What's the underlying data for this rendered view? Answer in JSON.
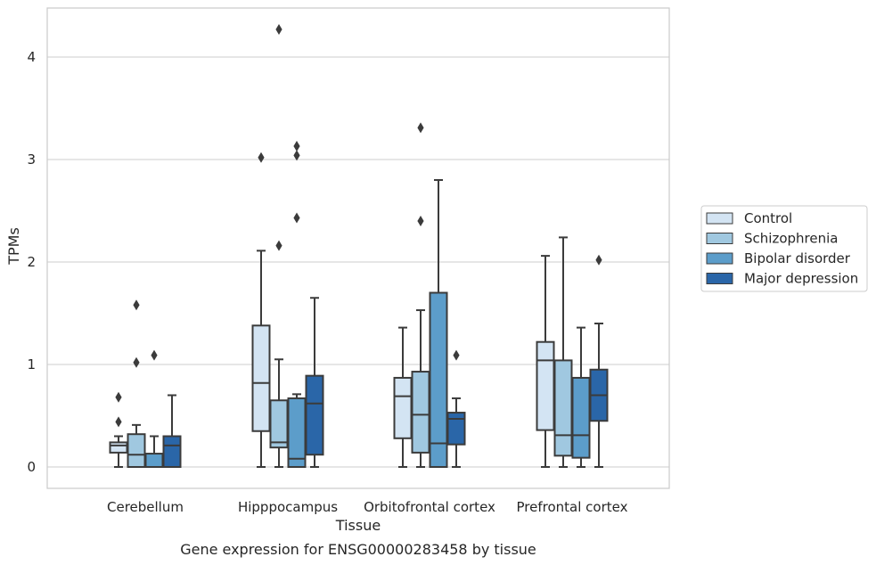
{
  "chart_data": {
    "type": "box",
    "caption": "Gene expression for ENSG00000283458 by tissue",
    "xlabel": "Tissue",
    "ylabel": "TPMs",
    "ylim": [
      -0.2,
      4.5
    ],
    "yticks": [
      0,
      1,
      2,
      3,
      4
    ],
    "grid": "horizontal",
    "legend_position": "right",
    "categories": [
      "Cerebellum",
      "Hipppocampus",
      "Orbitofrontal cortex",
      "Prefrontal cortex"
    ],
    "series": [
      {
        "name": "Control",
        "color": "#d3e4f3",
        "boxes": [
          {
            "whislo": 0,
            "q1": 0.14,
            "med": 0.21,
            "q3": 0.24,
            "whishi": 0.3,
            "fliers": [
              0.44,
              0.68
            ]
          },
          {
            "whislo": 0,
            "q1": 0.35,
            "med": 0.82,
            "q3": 1.38,
            "whishi": 2.11,
            "fliers": [
              3.02
            ]
          },
          {
            "whislo": 0,
            "q1": 0.28,
            "med": 0.69,
            "q3": 0.87,
            "whishi": 1.36,
            "fliers": []
          },
          {
            "whislo": 0,
            "q1": 0.36,
            "med": 1.04,
            "q3": 1.22,
            "whishi": 2.06,
            "fliers": []
          }
        ]
      },
      {
        "name": "Schizophrenia",
        "color": "#a0c8e0",
        "boxes": [
          {
            "whislo": 0,
            "q1": 0,
            "med": 0.12,
            "q3": 0.32,
            "whishi": 0.41,
            "fliers": [
              1.02,
              1.58
            ]
          },
          {
            "whislo": 0,
            "q1": 0.19,
            "med": 0.24,
            "q3": 0.65,
            "whishi": 1.05,
            "fliers": [
              2.16,
              4.27
            ]
          },
          {
            "whislo": 0,
            "q1": 0.14,
            "med": 0.51,
            "q3": 0.93,
            "whishi": 1.53,
            "fliers": [
              2.4,
              3.31
            ]
          },
          {
            "whislo": 0,
            "q1": 0.11,
            "med": 0.31,
            "q3": 1.04,
            "whishi": 2.24,
            "fliers": []
          }
        ]
      },
      {
        "name": "Bipolar disorder",
        "color": "#5c9dca",
        "boxes": [
          {
            "whislo": 0,
            "q1": 0,
            "med": 0,
            "q3": 0.13,
            "whishi": 0.3,
            "fliers": [
              1.09
            ]
          },
          {
            "whislo": 0,
            "q1": 0,
            "med": 0.08,
            "q3": 0.67,
            "whishi": 0.71,
            "fliers": [
              2.43,
              3.04,
              3.13
            ]
          },
          {
            "whislo": 0,
            "q1": 0,
            "med": 0.23,
            "q3": 1.7,
            "whishi": 2.8,
            "fliers": []
          },
          {
            "whislo": 0,
            "q1": 0.09,
            "med": 0.31,
            "q3": 0.87,
            "whishi": 1.36,
            "fliers": []
          }
        ]
      },
      {
        "name": "Major depression",
        "color": "#2a66a8",
        "boxes": [
          {
            "whislo": 0,
            "q1": 0,
            "med": 0.21,
            "q3": 0.3,
            "whishi": 0.7,
            "fliers": []
          },
          {
            "whislo": 0,
            "q1": 0.12,
            "med": 0.62,
            "q3": 0.89,
            "whishi": 1.65,
            "fliers": []
          },
          {
            "whislo": 0,
            "q1": 0.22,
            "med": 0.47,
            "q3": 0.53,
            "whishi": 0.67,
            "fliers": [
              1.09
            ]
          },
          {
            "whislo": 0,
            "q1": 0.45,
            "med": 0.7,
            "q3": 0.95,
            "whishi": 1.4,
            "fliers": [
              2.02
            ]
          }
        ]
      }
    ]
  }
}
